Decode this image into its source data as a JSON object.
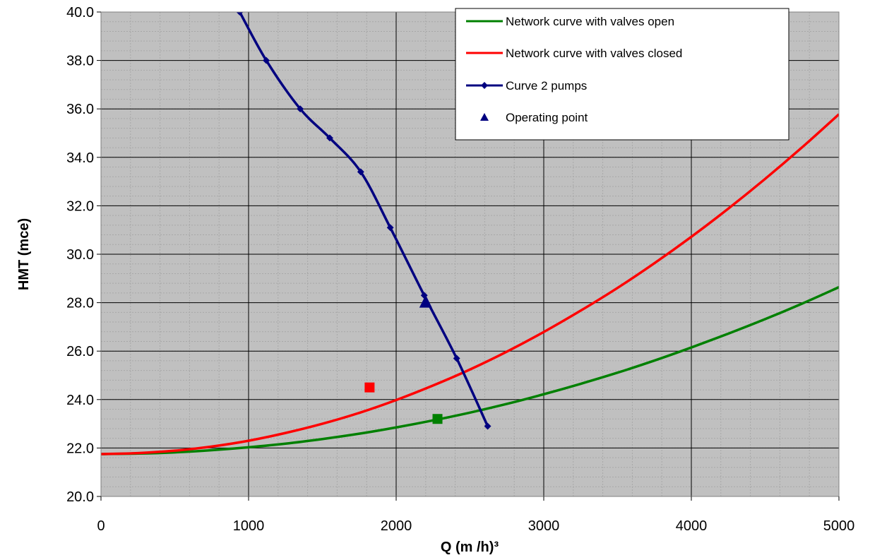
{
  "chart_data": {
    "type": "line",
    "title": "",
    "xlabel": "Q (m /h)³",
    "ylabel": "HMT (mce)",
    "xlim": [
      0,
      5000
    ],
    "ylim": [
      20,
      40
    ],
    "x_ticks": [
      "0",
      "1000",
      "2000",
      "3000",
      "4000",
      "5000"
    ],
    "y_ticks": [
      "20.0",
      "22.0",
      "24.0",
      "26.0",
      "28.0",
      "30.0",
      "32.0",
      "34.0",
      "36.0",
      "38.0",
      "40.0"
    ],
    "grid": true,
    "minor_grid": true,
    "legend_position": "top-right",
    "series": [
      {
        "name": "Network curve with valves open",
        "color": "#008000",
        "marker": "none",
        "x": [
          0,
          250,
          500,
          750,
          1000,
          1250,
          1500,
          1750,
          2000,
          2250,
          2500,
          2750,
          3000,
          3250,
          3500,
          3750,
          4000,
          4250,
          4500,
          4750,
          5000
        ],
        "y": [
          21.75,
          21.77,
          21.82,
          21.91,
          22.03,
          22.18,
          22.37,
          22.59,
          22.85,
          23.14,
          23.46,
          23.82,
          24.22,
          24.65,
          25.11,
          25.61,
          26.15,
          26.72,
          27.32,
          27.96,
          28.64
        ]
      },
      {
        "name": "Network curve with valves closed",
        "color": "#ff0000",
        "marker": "none",
        "x": [
          0,
          250,
          500,
          750,
          1000,
          1250,
          1500,
          1750,
          2000,
          2250,
          2500,
          2750,
          3000,
          3250,
          3500,
          3750,
          4000,
          4250,
          4500,
          4750,
          5000
        ],
        "y": [
          21.75,
          21.79,
          21.89,
          22.06,
          22.3,
          22.62,
          23.0,
          23.45,
          23.98,
          24.58,
          25.24,
          25.98,
          26.79,
          27.67,
          28.61,
          29.63,
          30.72,
          31.88,
          33.11,
          34.41,
          35.78
        ]
      },
      {
        "name": "Curve 2 pumps",
        "color": "#000080",
        "marker": "diamond",
        "x": [
          940,
          1120,
          1350,
          1550,
          1760,
          1960,
          2190,
          2410,
          2620
        ],
        "y": [
          40.0,
          38.0,
          36.0,
          34.8,
          33.4,
          31.1,
          28.3,
          25.7,
          22.9
        ]
      },
      {
        "name": "Operating point",
        "color": "#000080",
        "marker": "triangle",
        "x": [
          2200
        ],
        "y": [
          28.0
        ]
      }
    ],
    "extra_points": [
      {
        "x": 1820,
        "y": 24.5,
        "color": "#ff0000",
        "marker": "square"
      },
      {
        "x": 2280,
        "y": 23.2,
        "color": "#008000",
        "marker": "square"
      }
    ]
  }
}
